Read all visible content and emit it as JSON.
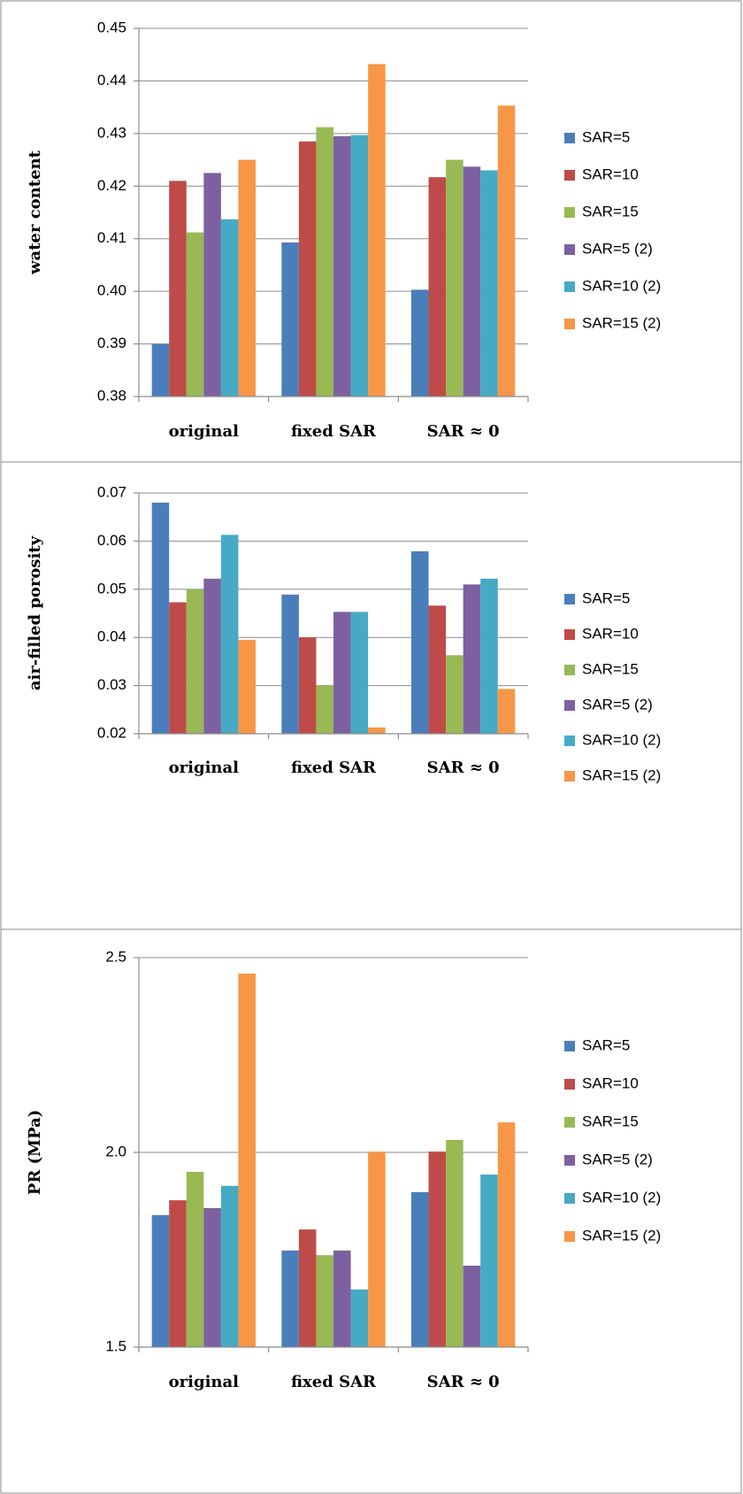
{
  "chart_data": [
    {
      "type": "bar",
      "y_label": "water content",
      "categories": [
        "original",
        "fixed SAR",
        "SAR ≈ 0"
      ],
      "series": [
        {
          "name": "SAR=5",
          "color": "#4a7ebb",
          "values": [
            0.39,
            0.4093,
            0.4003
          ]
        },
        {
          "name": "SAR=10",
          "color": "#be4b48",
          "values": [
            0.421,
            0.4285,
            0.4217
          ]
        },
        {
          "name": "SAR=15",
          "color": "#98b954",
          "values": [
            0.4112,
            0.4312,
            0.425
          ]
        },
        {
          "name": "SAR=5 (2)",
          "color": "#7d60a0",
          "values": [
            0.4225,
            0.4295,
            0.4237
          ]
        },
        {
          "name": "SAR=10 (2)",
          "color": "#46aac5",
          "values": [
            0.4137,
            0.4297,
            0.423
          ]
        },
        {
          "name": "SAR=15 (2)",
          "color": "#f79646",
          "values": [
            0.425,
            0.4432,
            0.4353
          ]
        }
      ],
      "ylim": [
        0.38,
        0.45
      ],
      "yticks": [
        0.38,
        0.39,
        {
          "value": 0.4,
          "label": "0.40"
        },
        0.41,
        0.42,
        0.43,
        0.44,
        0.45
      ],
      "grid": true,
      "legend": "right"
    },
    {
      "type": "bar",
      "y_label": "air-filled porosity",
      "categories": [
        "original",
        "fixed SAR",
        "SAR ≈ 0"
      ],
      "series": [
        {
          "name": "SAR=5",
          "color": "#4a7ebb",
          "values": [
            0.068,
            0.0489,
            0.0579
          ]
        },
        {
          "name": "SAR=10",
          "color": "#be4b48",
          "values": [
            0.0473,
            0.04,
            0.0466
          ]
        },
        {
          "name": "SAR=15",
          "color": "#98b954",
          "values": [
            0.05,
            0.03,
            0.0363
          ]
        },
        {
          "name": "SAR=5 (2)",
          "color": "#7d60a0",
          "values": [
            0.0522,
            0.0453,
            0.051
          ]
        },
        {
          "name": "SAR=10 (2)",
          "color": "#46aac5",
          "values": [
            0.0613,
            0.0453,
            0.0522
          ]
        },
        {
          "name": "SAR=15 (2)",
          "color": "#f79646",
          "values": [
            0.0395,
            0.0213,
            0.0293
          ]
        }
      ],
      "ylim": [
        0.02,
        0.07
      ],
      "yticks": [
        0.02,
        0.03,
        0.04,
        0.05,
        0.06,
        0.07
      ],
      "grid": true,
      "legend": "right"
    },
    {
      "type": "bar",
      "y_label": "PR (MPa)",
      "categories": [
        "original",
        "fixed SAR",
        "SAR ≈ 0"
      ],
      "series": [
        {
          "name": "SAR=5",
          "color": "#4a7ebb",
          "values": [
            1.839,
            1.748,
            1.898
          ]
        },
        {
          "name": "SAR=10",
          "color": "#be4b48",
          "values": [
            1.877,
            1.802,
            2.002
          ]
        },
        {
          "name": "SAR=15",
          "color": "#98b954",
          "values": [
            1.95,
            1.736,
            2.032
          ]
        },
        {
          "name": "SAR=5 (2)",
          "color": "#7d60a0",
          "values": [
            1.857,
            1.748,
            1.709
          ]
        },
        {
          "name": "SAR=10 (2)",
          "color": "#46aac5",
          "values": [
            1.914,
            1.648,
            1.943
          ]
        },
        {
          "name": "SAR=15 (2)",
          "color": "#f79646",
          "values": [
            2.459,
            2.002,
            2.077
          ]
        }
      ],
      "ylim": [
        1.5,
        2.5
      ],
      "yticks": [
        1.5,
        {
          "value": 2,
          "label": "2.0"
        },
        2.5
      ],
      "grid": true,
      "legend": "right"
    }
  ]
}
